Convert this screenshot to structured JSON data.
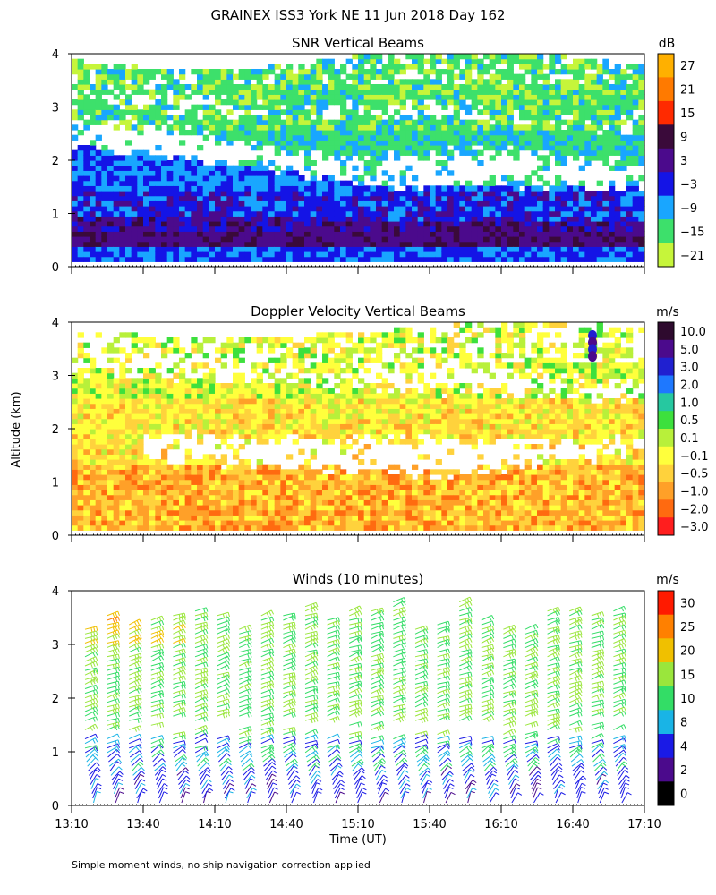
{
  "figure_title": "GRAINEX ISS3 York NE  11 Jun 2018 Day 162",
  "y_axis_title": "Altitude (km)",
  "x_axis_title": "Time (UT)",
  "footnote": "Simple moment winds, no ship navigation correction applied",
  "chart_data": [
    {
      "type": "heatmap",
      "title": "SNR Vertical Beams",
      "ylabel": "Altitude (km)",
      "ylim": [
        0,
        4
      ],
      "yticks": [
        "0",
        "1",
        "2",
        "3",
        "4"
      ],
      "x_range_ut": [
        "13:10",
        "17:10"
      ],
      "colorbar": {
        "unit": "dB",
        "levels": [
          "27",
          "21",
          "15",
          "9",
          "3",
          "−3",
          "−9",
          "−15",
          "−21"
        ],
        "colors": [
          "#ffb000",
          "#ff7a00",
          "#ff2a00",
          "#3a0a3a",
          "#4b0a8c",
          "#1414e6",
          "#19a6ff",
          "#3de06b",
          "#c6f53a"
        ]
      }
    },
    {
      "type": "heatmap",
      "title": "Doppler Velocity Vertical Beams",
      "ylabel": "Altitude (km)",
      "ylim": [
        0,
        4
      ],
      "yticks": [
        "0",
        "1",
        "2",
        "3",
        "4"
      ],
      "x_range_ut": [
        "13:10",
        "17:10"
      ],
      "colorbar": {
        "unit": "m/s",
        "levels": [
          "10.0",
          "5.0",
          "3.0",
          "2.0",
          "1.0",
          "0.5",
          "0.1",
          "−0.1",
          "−0.5",
          "−1.0",
          "−2.0",
          "−3.0"
        ],
        "colors": [
          "#2e0a2e",
          "#4b0a8c",
          "#2020d0",
          "#1e78ff",
          "#26c8a0",
          "#3de03d",
          "#b8f03a",
          "#ffff3c",
          "#ffd23c",
          "#ffa028",
          "#ff6a10",
          "#ff1e1e"
        ]
      }
    },
    {
      "type": "wind_barbs",
      "title": "Winds (10 minutes)",
      "ylabel": "Altitude (km)",
      "xlabel": "Time (UT)",
      "ylim": [
        0,
        4
      ],
      "yticks": [
        "0",
        "1",
        "2",
        "3",
        "4"
      ],
      "xticks": [
        "13:10",
        "13:40",
        "14:10",
        "14:40",
        "15:10",
        "15:40",
        "16:10",
        "16:40",
        "17:10"
      ],
      "colorbar": {
        "unit": "m/s",
        "levels": [
          "30",
          "25",
          "20",
          "15",
          "10",
          "8",
          "4",
          "2",
          "0"
        ],
        "colors": [
          "#ff1a00",
          "#ff8000",
          "#f0c000",
          "#9ae63c",
          "#33dd66",
          "#19b4e6",
          "#1a1ae6",
          "#4b0a8c",
          "#000000"
        ]
      }
    }
  ]
}
